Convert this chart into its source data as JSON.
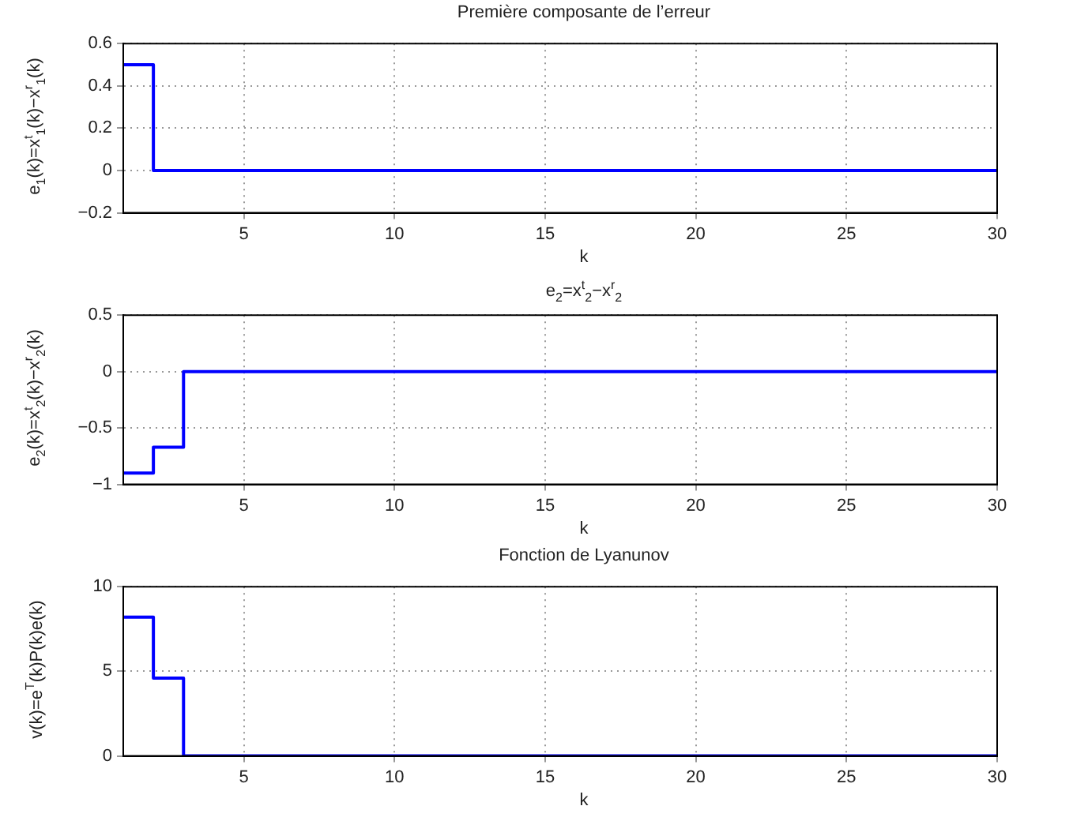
{
  "chart_data": [
    {
      "type": "step",
      "title": "Première composante de l’erreur",
      "xlabel": "k",
      "ylabel": "e$_{1}$(k)=x$^{t}$$_{1}$(k)−x$^{r}$$_{1}$(k)",
      "color": "#0000ff",
      "grid": true,
      "x": [
        1,
        2,
        3,
        4,
        5,
        6,
        7,
        8,
        9,
        10,
        11,
        12,
        13,
        14,
        15,
        16,
        17,
        18,
        19,
        20,
        21,
        22,
        23,
        24,
        25,
        26,
        27,
        28,
        29,
        30
      ],
      "values": [
        0.5,
        0,
        0,
        0,
        0,
        0,
        0,
        0,
        0,
        0,
        0,
        0,
        0,
        0,
        0,
        0,
        0,
        0,
        0,
        0,
        0,
        0,
        0,
        0,
        0,
        0,
        0,
        0,
        0,
        0
      ],
      "xlim": [
        1,
        30
      ],
      "xticks": [
        5,
        10,
        15,
        20,
        25,
        30
      ],
      "ylim": [
        -0.2,
        0.6
      ],
      "yticks": [
        -0.2,
        0,
        0.2,
        0.4,
        0.6
      ]
    },
    {
      "type": "step",
      "title": "e$_{2}$=x$^{t}$$_{2}$−x$^{r}$$_{2}$",
      "xlabel": "k",
      "ylabel": "e$_{2}$(k)=x$^{t}$$_{2}$(k)−x$^{r}$$_{2}$(k)",
      "color": "#0000ff",
      "grid": true,
      "x": [
        1,
        2,
        3,
        4,
        5,
        6,
        7,
        8,
        9,
        10,
        11,
        12,
        13,
        14,
        15,
        16,
        17,
        18,
        19,
        20,
        21,
        22,
        23,
        24,
        25,
        26,
        27,
        28,
        29,
        30
      ],
      "values": [
        -0.9,
        -0.67,
        0,
        0,
        0,
        0,
        0,
        0,
        0,
        0,
        0,
        0,
        0,
        0,
        0,
        0,
        0,
        0,
        0,
        0,
        0,
        0,
        0,
        0,
        0,
        0,
        0,
        0,
        0,
        0
      ],
      "xlim": [
        1,
        30
      ],
      "xticks": [
        5,
        10,
        15,
        20,
        25,
        30
      ],
      "ylim": [
        -1,
        0.5
      ],
      "yticks": [
        -1,
        -0.5,
        0,
        0.5
      ]
    },
    {
      "type": "step",
      "title": "Fonction de Lyanunov",
      "xlabel": "k",
      "ylabel": "v(k)=e$^{T}$(k)P(k)e(k)",
      "color": "#0000ff",
      "grid": true,
      "x": [
        1,
        2,
        3,
        4,
        5,
        6,
        7,
        8,
        9,
        10,
        11,
        12,
        13,
        14,
        15,
        16,
        17,
        18,
        19,
        20,
        21,
        22,
        23,
        24,
        25,
        26,
        27,
        28,
        29,
        30
      ],
      "values": [
        8.2,
        4.6,
        0,
        0,
        0,
        0,
        0,
        0,
        0,
        0,
        0,
        0,
        0,
        0,
        0,
        0,
        0,
        0,
        0,
        0,
        0,
        0,
        0,
        0,
        0,
        0,
        0,
        0,
        0,
        0
      ],
      "xlim": [
        1,
        30
      ],
      "xticks": [
        5,
        10,
        15,
        20,
        25,
        30
      ],
      "ylim": [
        0,
        10
      ],
      "yticks": [
        0,
        5,
        10
      ]
    }
  ]
}
